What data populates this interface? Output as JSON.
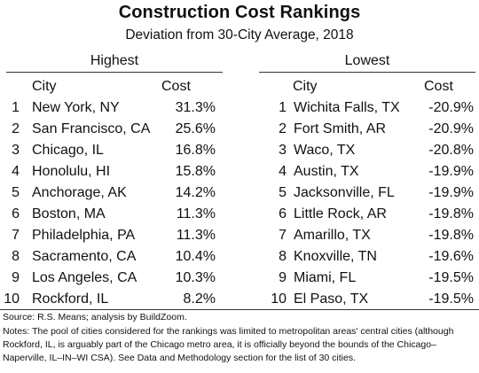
{
  "title": "Construction Cost Rankings",
  "subtitle": "Deviation from 30-City Average, 2018",
  "highest": {
    "label": "Highest",
    "col_city": "City",
    "col_cost": "Cost",
    "rows": [
      {
        "rank": "1",
        "city": "New York, NY",
        "cost": "31.3%"
      },
      {
        "rank": "2",
        "city": "San Francisco, CA",
        "cost": "25.6%"
      },
      {
        "rank": "3",
        "city": "Chicago, IL",
        "cost": "16.8%"
      },
      {
        "rank": "4",
        "city": "Honolulu, HI",
        "cost": "15.8%"
      },
      {
        "rank": "5",
        "city": "Anchorage, AK",
        "cost": "14.2%"
      },
      {
        "rank": "6",
        "city": "Boston, MA",
        "cost": "11.3%"
      },
      {
        "rank": "7",
        "city": "Philadelphia, PA",
        "cost": "11.3%"
      },
      {
        "rank": "8",
        "city": "Sacramento, CA",
        "cost": "10.4%"
      },
      {
        "rank": "9",
        "city": "Los Angeles, CA",
        "cost": "10.3%"
      },
      {
        "rank": "10",
        "city": "Rockford, IL",
        "cost": "8.2%"
      }
    ]
  },
  "lowest": {
    "label": "Lowest",
    "col_city": "City",
    "col_cost": "Cost",
    "rows": [
      {
        "rank": "1",
        "city": "Wichita Falls, TX",
        "cost": "-20.9%"
      },
      {
        "rank": "2",
        "city": "Fort Smith, AR",
        "cost": "-20.9%"
      },
      {
        "rank": "3",
        "city": "Waco, TX",
        "cost": "-20.8%"
      },
      {
        "rank": "4",
        "city": "Austin, TX",
        "cost": "-19.9%"
      },
      {
        "rank": "5",
        "city": "Jacksonville, FL",
        "cost": "-19.9%"
      },
      {
        "rank": "6",
        "city": "Little Rock, AR",
        "cost": "-19.8%"
      },
      {
        "rank": "7",
        "city": "Amarillo, TX",
        "cost": "-19.8%"
      },
      {
        "rank": "8",
        "city": "Knoxville, TN",
        "cost": "-19.6%"
      },
      {
        "rank": "9",
        "city": "Miami, FL",
        "cost": "-19.5%"
      },
      {
        "rank": "10",
        "city": "El Paso, TX",
        "cost": "-19.5%"
      }
    ]
  },
  "source": "Source: R.S. Means; analysis by BuildZoom.",
  "notes": "Notes: The pool of cities considered for the rankings was limited to metropolitan areas' central cities (although Rockford, IL, is arguably part of the Chicago metro area, it is officially beyond the bounds of the Chicago–Naperville, IL–IN–WI CSA). See Data and Methodology section for the list of 30 cities."
}
